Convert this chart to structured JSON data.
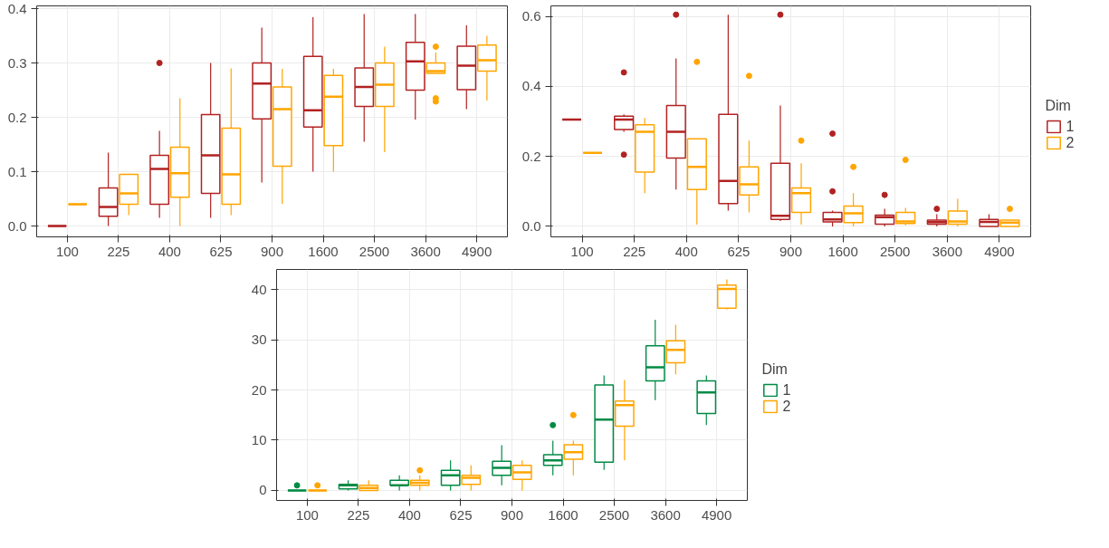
{
  "chart_data": [
    {
      "type": "box",
      "categories": [
        "100",
        "225",
        "400",
        "625",
        "900",
        "1600",
        "2500",
        "3600",
        "4900"
      ],
      "ylim": [
        -0.02,
        0.405
      ],
      "yticks": [
        {
          "value": 0,
          "label": "0.0"
        },
        0.1,
        0.2,
        0.3,
        0.4
      ],
      "grid": true,
      "legend": false,
      "series": [
        {
          "color": "#b22222",
          "boxes": [
            {
              "low": 0,
              "q1": 0,
              "median": 0,
              "q3": 0,
              "high": 0
            },
            {
              "low": 0,
              "q1": 0.018,
              "median": 0.035,
              "q3": 0.07,
              "high": 0.135
            },
            {
              "low": 0.015,
              "q1": 0.04,
              "median": 0.105,
              "q3": 0.13,
              "high": 0.175,
              "outliers": [
                0.3
              ]
            },
            {
              "low": 0.015,
              "q1": 0.06,
              "median": 0.13,
              "q3": 0.205,
              "high": 0.3
            },
            {
              "low": 0.08,
              "q1": 0.197,
              "median": 0.262,
              "q3": 0.3,
              "high": 0.365
            },
            {
              "low": 0.1,
              "q1": 0.182,
              "median": 0.213,
              "q3": 0.312,
              "high": 0.384
            },
            {
              "low": 0.155,
              "q1": 0.22,
              "median": 0.256,
              "q3": 0.291,
              "high": 0.39
            },
            {
              "low": 0.196,
              "q1": 0.25,
              "median": 0.303,
              "q3": 0.338,
              "high": 0.39
            },
            {
              "low": 0.215,
              "q1": 0.251,
              "median": 0.295,
              "q3": 0.331,
              "high": 0.369
            }
          ]
        },
        {
          "color": "#ffa500",
          "boxes": [
            {
              "low": 0.04,
              "q1": 0.04,
              "median": 0.04,
              "q3": 0.04,
              "high": 0.04
            },
            {
              "low": 0.02,
              "q1": 0.04,
              "median": 0.06,
              "q3": 0.095,
              "high": 0.095
            },
            {
              "low": 0,
              "q1": 0.053,
              "median": 0.097,
              "q3": 0.145,
              "high": 0.235
            },
            {
              "low": 0.02,
              "q1": 0.04,
              "median": 0.095,
              "q3": 0.18,
              "high": 0.29
            },
            {
              "low": 0.041,
              "q1": 0.11,
              "median": 0.215,
              "q3": 0.256,
              "high": 0.289
            },
            {
              "low": 0.1,
              "q1": 0.148,
              "median": 0.238,
              "q3": 0.277,
              "high": 0.289
            },
            {
              "low": 0.136,
              "q1": 0.22,
              "median": 0.26,
              "q3": 0.3,
              "high": 0.33
            },
            {
              "low": 0.281,
              "q1": 0.281,
              "median": 0.285,
              "q3": 0.3,
              "high": 0.319,
              "outliers": [
                0.33,
                0.235,
                0.229
              ]
            },
            {
              "low": 0.231,
              "q1": 0.285,
              "median": 0.305,
              "q3": 0.333,
              "high": 0.35
            }
          ]
        }
      ]
    },
    {
      "type": "box",
      "categories": [
        "100",
        "225",
        "400",
        "625",
        "900",
        "1600",
        "2500",
        "3600",
        "4900"
      ],
      "ylim": [
        -0.03,
        0.63
      ],
      "yticks": [
        {
          "value": 0,
          "label": "0.0"
        },
        0.2,
        0.4,
        0.6
      ],
      "grid": true,
      "legend": "right",
      "legend_title": "Dim",
      "series": [
        {
          "name": "1",
          "color": "#b22222",
          "boxes": [
            {
              "low": 0.305,
              "q1": 0.305,
              "median": 0.305,
              "q3": 0.305,
              "high": 0.305
            },
            {
              "low": 0.27,
              "q1": 0.277,
              "median": 0.305,
              "q3": 0.315,
              "high": 0.32,
              "outliers": [
                0.44,
                0.205
              ]
            },
            {
              "low": 0.105,
              "q1": 0.195,
              "median": 0.27,
              "q3": 0.345,
              "high": 0.48,
              "outliers": [
                0.605
              ]
            },
            {
              "low": 0.045,
              "q1": 0.065,
              "median": 0.13,
              "q3": 0.32,
              "high": 0.605
            },
            {
              "low": 0.015,
              "q1": 0.02,
              "median": 0.03,
              "q3": 0.18,
              "high": 0.345,
              "outliers": [
                0.605
              ]
            },
            {
              "low": 0,
              "q1": 0.013,
              "median": 0.02,
              "q3": 0.04,
              "high": 0.045,
              "outliers": [
                0.265,
                0.1
              ]
            },
            {
              "low": 0,
              "q1": 0.006,
              "median": 0.026,
              "q3": 0.032,
              "high": 0.05,
              "outliers": [
                0.09
              ]
            },
            {
              "low": 0,
              "q1": 0.006,
              "median": 0.012,
              "q3": 0.018,
              "high": 0.035,
              "outliers": [
                0.05
              ]
            },
            {
              "low": 0,
              "q1": 0,
              "median": 0.013,
              "q3": 0.02,
              "high": 0.035
            }
          ]
        },
        {
          "name": "2",
          "color": "#ffa500",
          "boxes": [
            {
              "low": 0.21,
              "q1": 0.21,
              "median": 0.21,
              "q3": 0.21,
              "high": 0.21
            },
            {
              "low": 0.095,
              "q1": 0.155,
              "median": 0.27,
              "q3": 0.29,
              "high": 0.31
            },
            {
              "low": 0.005,
              "q1": 0.105,
              "median": 0.17,
              "q3": 0.25,
              "high": 0.25,
              "outliers": [
                0.47
              ]
            },
            {
              "low": 0.04,
              "q1": 0.09,
              "median": 0.12,
              "q3": 0.17,
              "high": 0.245,
              "outliers": [
                0.43
              ]
            },
            {
              "low": 0.005,
              "q1": 0.04,
              "median": 0.095,
              "q3": 0.11,
              "high": 0.18,
              "outliers": [
                0.245
              ]
            },
            {
              "low": 0,
              "q1": 0.011,
              "median": 0.037,
              "q3": 0.058,
              "high": 0.095,
              "outliers": [
                0.17
              ]
            },
            {
              "low": 0.003,
              "q1": 0.008,
              "median": 0.014,
              "q3": 0.04,
              "high": 0.053,
              "outliers": [
                0.19
              ]
            },
            {
              "low": 0,
              "q1": 0.006,
              "median": 0.014,
              "q3": 0.044,
              "high": 0.079
            },
            {
              "low": 0,
              "q1": 0,
              "median": 0.011,
              "q3": 0.018,
              "high": 0.018,
              "outliers": [
                0.05
              ]
            }
          ]
        }
      ]
    },
    {
      "type": "box",
      "categories": [
        "100",
        "225",
        "400",
        "625",
        "900",
        "1600",
        "2500",
        "3600",
        "4900"
      ],
      "ylim": [
        -2,
        44
      ],
      "yticks": [
        0,
        10,
        20,
        30,
        40
      ],
      "grid": true,
      "legend": "right",
      "legend_title": "Dim",
      "series": [
        {
          "name": "1",
          "color": "#008b45",
          "boxes": [
            {
              "low": 0,
              "q1": 0,
              "median": 0,
              "q3": 0,
              "high": 0,
              "outliers": [
                1
              ]
            },
            {
              "low": 0,
              "q1": 0.3,
              "median": 1,
              "q3": 1.2,
              "high": 2
            },
            {
              "low": 0,
              "q1": 1,
              "median": 1,
              "q3": 2,
              "high": 3
            },
            {
              "low": 0,
              "q1": 1,
              "median": 3,
              "q3": 4,
              "high": 6
            },
            {
              "low": 1,
              "q1": 3,
              "median": 4.5,
              "q3": 5.8,
              "high": 9
            },
            {
              "low": 3,
              "q1": 5,
              "median": 6,
              "q3": 7.1,
              "high": 9.9,
              "outliers": [
                13
              ]
            },
            {
              "low": 4.1,
              "q1": 5.6,
              "median": 14.1,
              "q3": 21,
              "high": 22.9
            },
            {
              "low": 18,
              "q1": 21.8,
              "median": 24.5,
              "q3": 28.8,
              "high": 34
            },
            {
              "low": 13,
              "q1": 15.3,
              "median": 19.5,
              "q3": 21.8,
              "high": 22.9
            }
          ]
        },
        {
          "name": "2",
          "color": "#ffa500",
          "boxes": [
            {
              "low": 0,
              "q1": 0,
              "median": 0,
              "q3": 0,
              "high": 0,
              "outliers": [
                1
              ]
            },
            {
              "low": 0,
              "q1": 0,
              "median": 0.5,
              "q3": 1,
              "high": 2
            },
            {
              "low": 0,
              "q1": 1,
              "median": 1.5,
              "q3": 2,
              "high": 3,
              "outliers": [
                4
              ]
            },
            {
              "low": 0,
              "q1": 1.2,
              "median": 2.5,
              "q3": 3,
              "high": 5
            },
            {
              "low": 0,
              "q1": 2.2,
              "median": 3.6,
              "q3": 5,
              "high": 6
            },
            {
              "low": 3,
              "q1": 6.2,
              "median": 7.6,
              "q3": 9.1,
              "high": 9.9,
              "outliers": [
                15
              ]
            },
            {
              "low": 6,
              "q1": 12.8,
              "median": 17,
              "q3": 17.8,
              "high": 22
            },
            {
              "low": 23.1,
              "q1": 25.4,
              "median": 28,
              "q3": 29.8,
              "high": 33
            },
            {
              "low": 36,
              "q1": 36.3,
              "median": 40.1,
              "q3": 40.9,
              "high": 42
            }
          ]
        }
      ]
    }
  ]
}
